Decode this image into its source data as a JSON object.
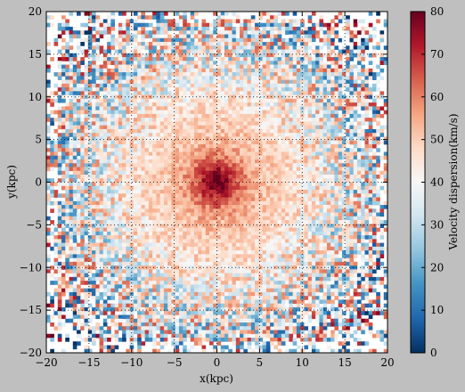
{
  "chart_data": {
    "type": "heatmap",
    "title": "",
    "xlabel": "x(kpc)",
    "ylabel": "y(kpc)",
    "xlim": [
      -20,
      20
    ],
    "ylim": [
      -20,
      20
    ],
    "x_ticks": [
      "−20",
      "−15",
      "−10",
      "−5",
      "0",
      "5",
      "10",
      "15",
      "20"
    ],
    "y_ticks": [
      "−20",
      "−15",
      "−10",
      "−5",
      "0",
      "5",
      "10",
      "15",
      "20"
    ],
    "grid": true,
    "grid_style": "dotted",
    "colormap": "RdBu_r",
    "colorbar": {
      "label": "Velocity dispersion(km/s)",
      "range": [
        0,
        80
      ],
      "ticks": [
        "0",
        "10",
        "20",
        "30",
        "40",
        "50",
        "60",
        "70",
        "80"
      ]
    },
    "description_values": {
      "center_value": 80,
      "inner_disk_value": 58,
      "outer_disk_value": 38,
      "edge_noise": "high"
    }
  },
  "colors": {
    "background": "#bfbfbf",
    "plot_background": "#ffffff",
    "colormap_stops": [
      "#053061",
      "#2166ac",
      "#4393c3",
      "#92c5de",
      "#d1e5f0",
      "#f7f7f7",
      "#fddbc7",
      "#f4a582",
      "#d6604d",
      "#b2182b",
      "#67001f"
    ]
  }
}
